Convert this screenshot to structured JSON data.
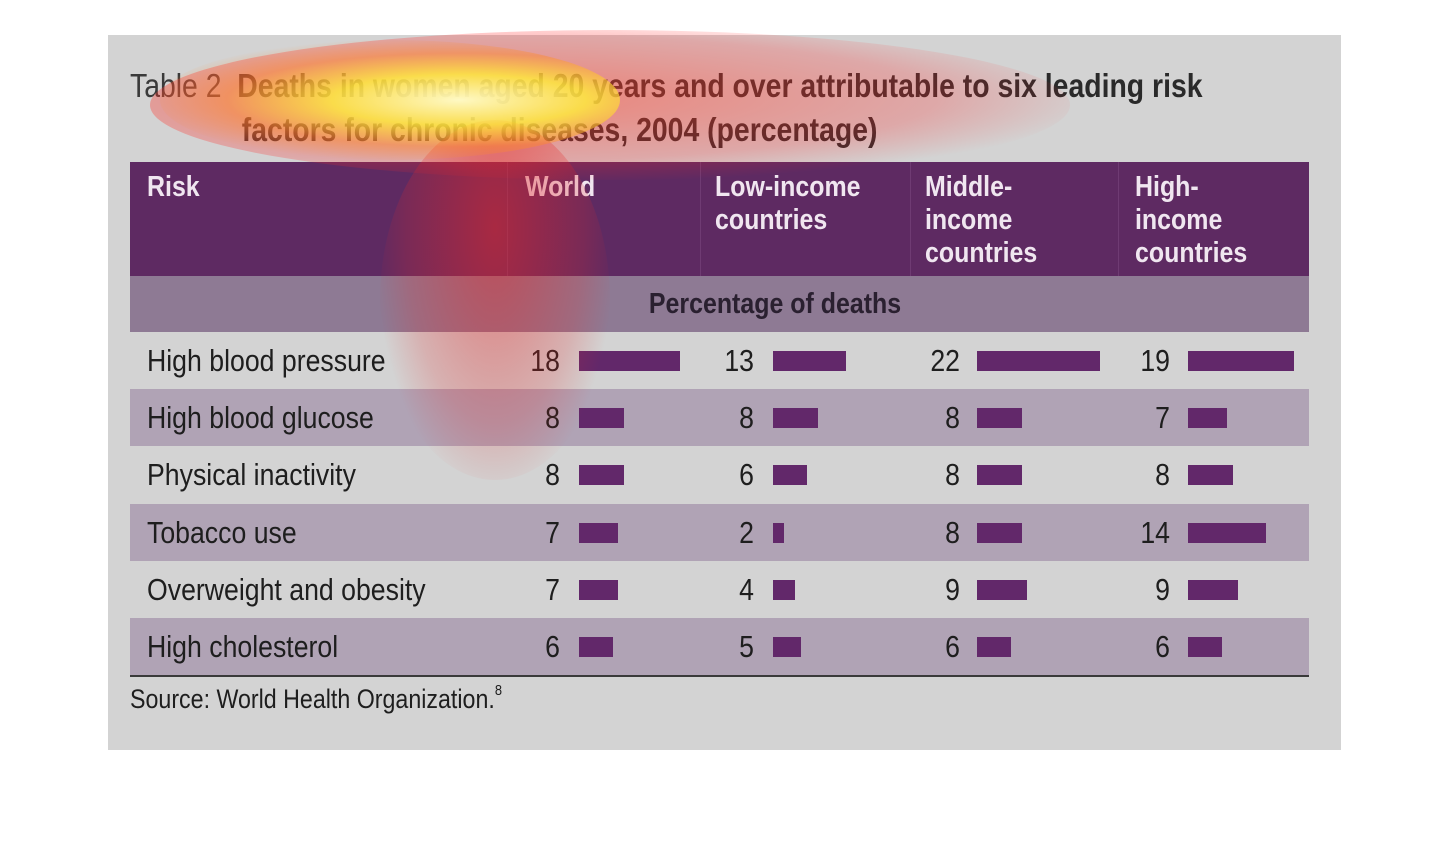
{
  "title": {
    "label": "Table 2",
    "text_line1": "Deaths in women aged 20 years and over attributable to six leading risk",
    "text_line2": "factors for chronic diseases, 2004 (percentage)"
  },
  "subheader": "Percentage of deaths",
  "source": {
    "text": "Source: World Health Organization.",
    "note": "8"
  },
  "colors": {
    "header_bg": "#5e2a62",
    "subheader_bg": "#8e7a94",
    "bar": "#62286a",
    "alt_row": "#b0a3b5",
    "panel": "#d3d3d3"
  },
  "chart_data": {
    "type": "table",
    "columns": [
      "Risk",
      "World",
      "Low-income\ncountries",
      "Middle-\nincome\ncountries",
      "High-\nincome\ncountries"
    ],
    "rows": [
      {
        "label": "High blood pressure",
        "values": [
          18,
          13,
          22,
          19
        ]
      },
      {
        "label": "High blood glucose",
        "values": [
          8,
          8,
          8,
          7
        ]
      },
      {
        "label": "Physical inactivity",
        "values": [
          8,
          6,
          8,
          8
        ]
      },
      {
        "label": "Tobacco use",
        "values": [
          7,
          2,
          8,
          14
        ]
      },
      {
        "label": "Overweight and obesity",
        "values": [
          7,
          4,
          9,
          9
        ]
      },
      {
        "label": "High cholesterol",
        "values": [
          6,
          5,
          6,
          6
        ]
      }
    ]
  }
}
